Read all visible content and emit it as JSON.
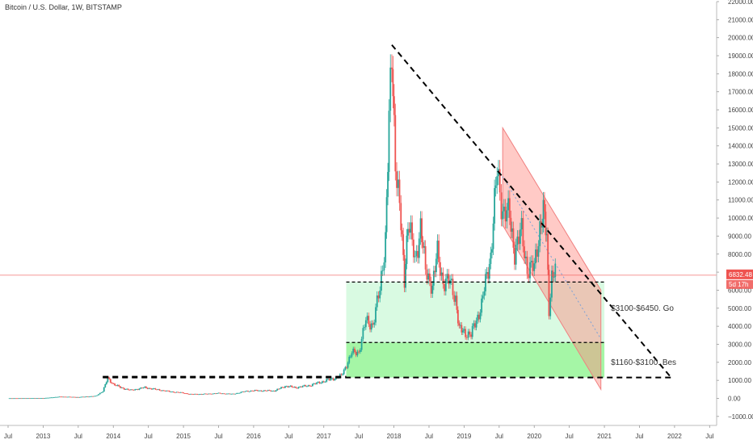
{
  "chart_data": {
    "type": "candlestick",
    "title": "Bitcoin / U.S. Dollar, 1W, BITSTAMP",
    "ylim": [
      -1500,
      22000
    ],
    "xlim": [
      2012.5,
      2022.6
    ],
    "y_ticks": [
      -1000,
      0,
      1000,
      2000,
      3000,
      4000,
      5000,
      6000,
      7000,
      8000,
      9000,
      10000,
      11000,
      12000,
      13000,
      14000,
      15000,
      16000,
      17000,
      18000,
      19000,
      20000,
      21000,
      22000
    ],
    "y_tick_labels": [
      "−1000.00",
      "0.00",
      "1000.00",
      "2000.00",
      "3000.00",
      "4000.00",
      "5000.00",
      "6000.00",
      "7000.00",
      "8000.00",
      "9000.00",
      "10000.00",
      "11000.00",
      "12000.00",
      "13000.00",
      "14000.00",
      "15000.00",
      "16000.00",
      "17000.00",
      "18000.00",
      "19000.00",
      "20000.00",
      "21000.00",
      "22000.00"
    ],
    "x_ticks": [
      {
        "x": 2012.5,
        "label": "Jul"
      },
      {
        "x": 2013.0,
        "label": "2013"
      },
      {
        "x": 2013.5,
        "label": "Jul"
      },
      {
        "x": 2014.0,
        "label": "2014"
      },
      {
        "x": 2014.5,
        "label": "Jul"
      },
      {
        "x": 2015.0,
        "label": "2015"
      },
      {
        "x": 2015.5,
        "label": "Jul"
      },
      {
        "x": 2016.0,
        "label": "2016"
      },
      {
        "x": 2016.5,
        "label": "Jul"
      },
      {
        "x": 2017.0,
        "label": "2017"
      },
      {
        "x": 2017.5,
        "label": "Jul"
      },
      {
        "x": 2018.0,
        "label": "2018"
      },
      {
        "x": 2018.5,
        "label": "Jul"
      },
      {
        "x": 2019.0,
        "label": "2019"
      },
      {
        "x": 2019.5,
        "label": "Jul"
      },
      {
        "x": 2020.0,
        "label": "2020"
      },
      {
        "x": 2020.5,
        "label": "Jul"
      },
      {
        "x": 2021.0,
        "label": "2021"
      },
      {
        "x": 2021.5,
        "label": "Jul"
      },
      {
        "x": 2022.0,
        "label": "2022"
      },
      {
        "x": 2022.5,
        "label": "Jul"
      }
    ],
    "price_path": [
      [
        2012.5,
        7
      ],
      [
        2013.0,
        13
      ],
      [
        2013.25,
        95
      ],
      [
        2013.5,
        70
      ],
      [
        2013.75,
        130
      ],
      [
        2013.85,
        400
      ],
      [
        2013.92,
        1100
      ],
      [
        2014.0,
        800
      ],
      [
        2014.1,
        600
      ],
      [
        2014.25,
        450
      ],
      [
        2014.45,
        600
      ],
      [
        2014.6,
        500
      ],
      [
        2014.8,
        380
      ],
      [
        2015.0,
        300
      ],
      [
        2015.1,
        230
      ],
      [
        2015.3,
        240
      ],
      [
        2015.5,
        280
      ],
      [
        2015.7,
        240
      ],
      [
        2015.9,
        400
      ],
      [
        2016.0,
        430
      ],
      [
        2016.3,
        420
      ],
      [
        2016.45,
        680
      ],
      [
        2016.6,
        600
      ],
      [
        2016.8,
        720
      ],
      [
        2017.0,
        950
      ],
      [
        2017.1,
        1050
      ],
      [
        2017.25,
        1250
      ],
      [
        2017.4,
        2500
      ],
      [
        2017.5,
        2600
      ],
      [
        2017.6,
        4300
      ],
      [
        2017.7,
        4100
      ],
      [
        2017.8,
        6000
      ],
      [
        2017.88,
        9000
      ],
      [
        2017.93,
        15000
      ],
      [
        2017.97,
        19000
      ],
      [
        2018.02,
        13500
      ],
      [
        2018.1,
        9500
      ],
      [
        2018.15,
        6600
      ],
      [
        2018.2,
        10000
      ],
      [
        2018.3,
        7500
      ],
      [
        2018.38,
        9700
      ],
      [
        2018.45,
        7000
      ],
      [
        2018.55,
        6300
      ],
      [
        2018.62,
        8000
      ],
      [
        2018.7,
        6500
      ],
      [
        2018.8,
        6400
      ],
      [
        2018.88,
        5600
      ],
      [
        2018.93,
        3800
      ],
      [
        2019.0,
        3700
      ],
      [
        2019.1,
        3500
      ],
      [
        2019.25,
        5200
      ],
      [
        2019.38,
        8000
      ],
      [
        2019.47,
        12500
      ],
      [
        2019.55,
        10500
      ],
      [
        2019.65,
        10000
      ],
      [
        2019.72,
        8200
      ],
      [
        2019.82,
        9200
      ],
      [
        2019.9,
        7200
      ],
      [
        2020.0,
        7200
      ],
      [
        2020.08,
        9600
      ],
      [
        2020.13,
        10200
      ],
      [
        2020.18,
        8900
      ],
      [
        2020.21,
        5000
      ],
      [
        2020.25,
        6800
      ],
      [
        2020.3,
        6832
      ]
    ],
    "current_price": {
      "value": 6832.48,
      "label": "6832.48",
      "countdown": "5d 17h"
    },
    "color_up": "#26a69a",
    "color_down": "#ef5350"
  },
  "annotations": {
    "zone_upper": {
      "low": 3100,
      "high": 6450,
      "label": "$3100-$6450. Go",
      "color": "#b9f6ca"
    },
    "zone_lower": {
      "low": 1160,
      "high": 3100,
      "label": "$1160-$3100. Bes",
      "color": "#69f06a"
    },
    "support_line": {
      "value": 1160
    },
    "trendline_color": "#000000",
    "channel_color": "#f08080"
  }
}
